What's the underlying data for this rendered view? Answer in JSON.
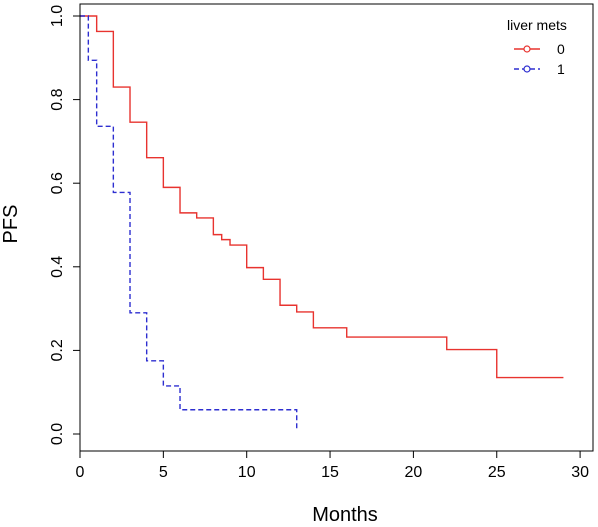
{
  "chart_data": {
    "type": "line",
    "title": "",
    "xlabel": "Months",
    "ylabel": "PFS",
    "xlim": [
      0,
      30
    ],
    "ylim": [
      0,
      1
    ],
    "x_ticks": [
      "0",
      "5",
      "10",
      "15",
      "20",
      "25",
      "30"
    ],
    "y_ticks": [
      "0.0",
      "0.2",
      "0.4",
      "0.6",
      "0.8",
      "1.0"
    ],
    "grid": false,
    "legend": {
      "title": "liver mets",
      "placement": "top-right",
      "entries": [
        "0",
        "1"
      ]
    },
    "series": [
      {
        "name": "0",
        "color": "#e8332f",
        "dash": "solid",
        "marker": "circle",
        "x": [
          0,
          0.5,
          1,
          2,
          3,
          4,
          5,
          6,
          7,
          8,
          8.5,
          9,
          10,
          11,
          12,
          13,
          14,
          16,
          22,
          25,
          29
        ],
        "y": [
          1.0,
          1.0,
          0.963,
          0.83,
          0.746,
          0.661,
          0.59,
          0.529,
          0.517,
          0.477,
          0.465,
          0.452,
          0.398,
          0.37,
          0.308,
          0.292,
          0.254,
          0.232,
          0.202,
          0.135,
          0.135
        ]
      },
      {
        "name": "1",
        "color": "#2e2fd0",
        "dash": "dashed",
        "marker": "circle",
        "x": [
          0,
          0.5,
          1,
          2,
          3,
          4,
          5,
          6,
          13
        ],
        "y": [
          1.0,
          0.894,
          0.736,
          0.578,
          0.29,
          0.175,
          0.115,
          0.058,
          0.013
        ]
      }
    ]
  }
}
